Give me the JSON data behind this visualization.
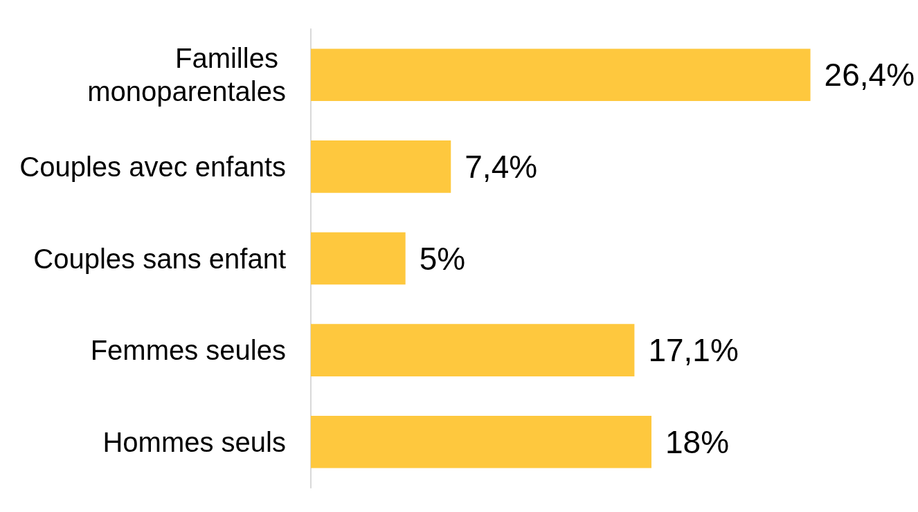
{
  "chart_data": {
    "type": "bar",
    "orientation": "horizontal",
    "categories": [
      "Familles monoparentales",
      "Couples avec enfants",
      "Couples sans enfant",
      "Femmes seules",
      "Hommes seuls"
    ],
    "values": [
      26.4,
      7.4,
      5,
      17.1,
      18
    ],
    "value_labels": [
      "26,4%",
      "7,4%",
      "5%",
      "17,1%",
      "18%"
    ],
    "color": "#fec83e",
    "grid": false,
    "tick_labels": "y"
  }
}
